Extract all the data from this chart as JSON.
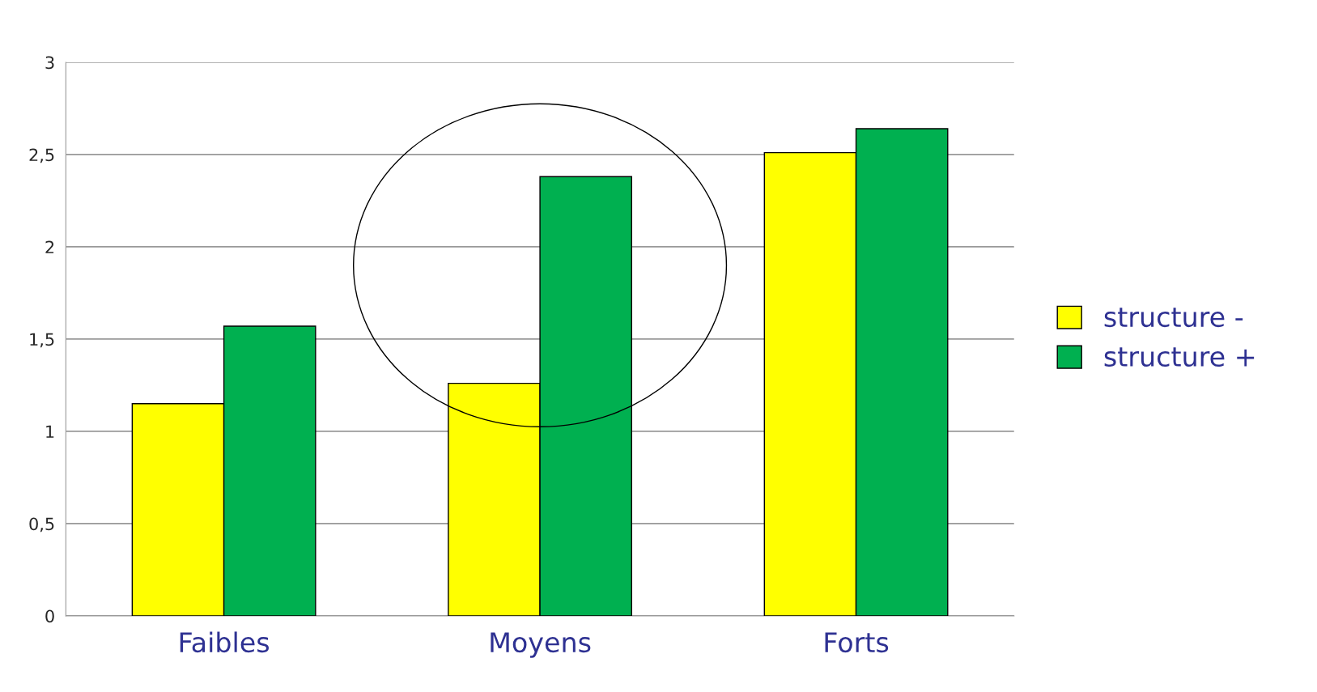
{
  "chart_data": {
    "type": "bar",
    "categories": [
      "Faibles",
      "Moyens",
      "Forts"
    ],
    "series": [
      {
        "name": "structure -",
        "color": "#ffff00",
        "values": [
          1.15,
          1.26,
          2.51
        ]
      },
      {
        "name": "structure +",
        "color": "#00b050",
        "values": [
          1.57,
          2.38,
          2.64
        ]
      }
    ],
    "ylim": [
      0,
      3
    ],
    "yticks": [
      0,
      {
        "value": 0.5,
        "label": "0,5"
      },
      1,
      {
        "value": 1.5,
        "label": "1,5"
      },
      2,
      {
        "value": 2.5,
        "label": "2,5"
      },
      3
    ],
    "grid": "y",
    "legend": "right"
  }
}
